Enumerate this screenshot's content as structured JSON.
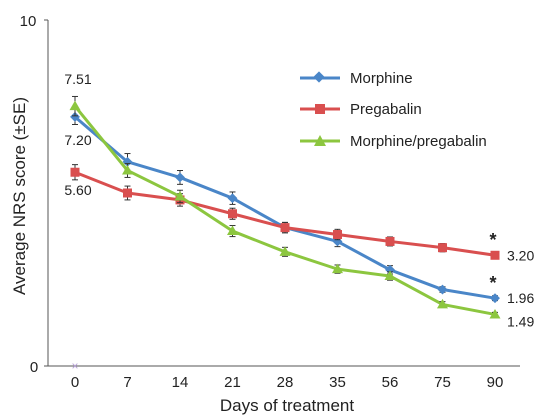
{
  "chart_data": {
    "type": "line",
    "title": "",
    "xlabel": "Days  of treatment",
    "ylabel": "Average NRS score (±SE)",
    "categories": [
      "0",
      "7",
      "14",
      "21",
      "28",
      "35",
      "56",
      "75",
      "90"
    ],
    "ylim": [
      0,
      10
    ],
    "y_tick_labels": [
      "0",
      "10"
    ],
    "legend_position": "top-right",
    "grid": false,
    "series": [
      {
        "name": "Morphine",
        "color": "#4a86c8",
        "marker": "diamond",
        "values": [
          7.2,
          5.9,
          5.45,
          4.85,
          4.0,
          3.6,
          2.78,
          2.21,
          1.96
        ],
        "errors": [
          0.22,
          0.24,
          0.2,
          0.18,
          0.15,
          0.15,
          0.12,
          0.08,
          0.07
        ]
      },
      {
        "name": "Pregabalin",
        "color": "#d94f4f",
        "marker": "square",
        "values": [
          5.6,
          5.0,
          4.8,
          4.4,
          4.0,
          3.8,
          3.6,
          3.42,
          3.2
        ],
        "errors": [
          0.22,
          0.2,
          0.18,
          0.16,
          0.15,
          0.15,
          0.13,
          0.12,
          0.1
        ]
      },
      {
        "name": "Morphine/pregabalin",
        "color": "#8cc63f",
        "marker": "triangle",
        "values": [
          7.51,
          5.65,
          4.9,
          3.9,
          3.3,
          2.8,
          2.6,
          1.78,
          1.49
        ],
        "errors": [
          0.28,
          0.2,
          0.18,
          0.16,
          0.13,
          0.12,
          0.12,
          0.08,
          0.06
        ]
      }
    ],
    "data_labels": [
      {
        "text": "7.51",
        "series": 2,
        "index": 0
      },
      {
        "text": "7.20",
        "series": 0,
        "index": 0
      },
      {
        "text": "5.60",
        "series": 1,
        "index": 0
      },
      {
        "text": "3.20",
        "series": 1,
        "index": 8
      },
      {
        "text": "1.96",
        "series": 0,
        "index": 8
      },
      {
        "text": "1.49",
        "series": 2,
        "index": 8
      }
    ],
    "annotations": [
      "*",
      "*"
    ]
  }
}
